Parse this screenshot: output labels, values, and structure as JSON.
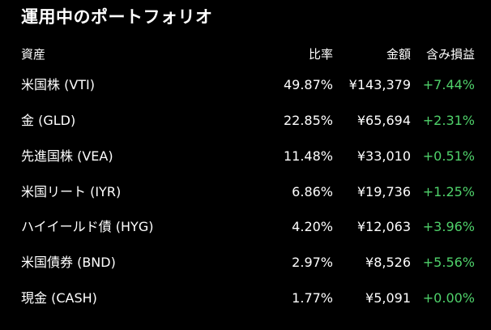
{
  "title": "運用中のポートフォリオ",
  "columns": {
    "name": "資産",
    "ratio": "比率",
    "amount": "金額",
    "gain": "含み損益"
  },
  "rows": [
    {
      "name": "米国株 (VTI)",
      "ratio": "49.87%",
      "amount": "¥143,379",
      "gain": "+7.44%"
    },
    {
      "name": "金 (GLD)",
      "ratio": "22.85%",
      "amount": "¥65,694",
      "gain": "+2.31%"
    },
    {
      "name": "先進国株 (VEA)",
      "ratio": "11.48%",
      "amount": "¥33,010",
      "gain": "+0.51%"
    },
    {
      "name": "米国リート (IYR)",
      "ratio": "6.86%",
      "amount": "¥19,736",
      "gain": "+1.25%"
    },
    {
      "name": "ハイイールド債 (HYG)",
      "ratio": "4.20%",
      "amount": "¥12,063",
      "gain": "+3.96%"
    },
    {
      "name": "米国債券 (BND)",
      "ratio": "2.97%",
      "amount": "¥8,526",
      "gain": "+5.56%"
    },
    {
      "name": "現金 (CASH)",
      "ratio": "1.77%",
      "amount": "¥5,091",
      "gain": "+0.00%"
    }
  ],
  "colors": {
    "background": "#000000",
    "text": "#ffffff",
    "gain_positive": "#4fd16a"
  }
}
